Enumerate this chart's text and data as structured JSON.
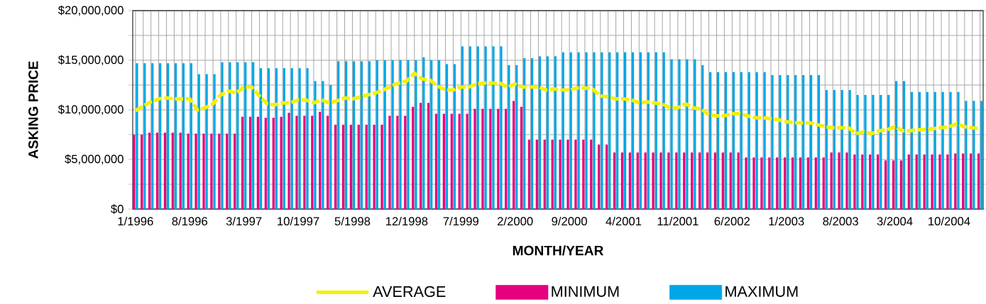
{
  "chart_data": {
    "type": "bar",
    "xlabel": "MONTH/YEAR",
    "ylabel": "ASKING PRICE",
    "categories": [
      "1/1996",
      null,
      null,
      null,
      null,
      null,
      null,
      "8/1996",
      null,
      null,
      null,
      null,
      null,
      null,
      "3/1997",
      null,
      null,
      null,
      null,
      null,
      null,
      "10/1997",
      null,
      null,
      null,
      null,
      null,
      null,
      "5/1998",
      null,
      null,
      null,
      null,
      null,
      null,
      "12/1998",
      null,
      null,
      null,
      null,
      null,
      null,
      "7/1999",
      null,
      null,
      null,
      null,
      null,
      null,
      "2/2000",
      null,
      null,
      null,
      null,
      null,
      null,
      "9/2000",
      null,
      null,
      null,
      null,
      null,
      null,
      "4/2001",
      null,
      null,
      null,
      null,
      null,
      null,
      "11/2001",
      null,
      null,
      null,
      null,
      null,
      null,
      "6/2002",
      null,
      null,
      null,
      null,
      null,
      null,
      "1/2003",
      null,
      null,
      null,
      null,
      null,
      null,
      "8/2003",
      null,
      null,
      null,
      null,
      null,
      null,
      "3/2004",
      null,
      null,
      null,
      null,
      null,
      null,
      "10/2004",
      null,
      null,
      null,
      null
    ],
    "series": [
      {
        "name": "AVERAGE",
        "type": "line",
        "line_style": "dashed",
        "color": "#f5f000",
        "values": [
          9900000.0,
          10400000.0,
          10800000.0,
          11100000.0,
          11200000.0,
          11100000.0,
          11100000.0,
          11100000.0,
          10000000.0,
          10200000.0,
          10600000.0,
          11500000.0,
          11900000.0,
          11700000.0,
          12300000.0,
          12300000.0,
          11400000.0,
          10600000.0,
          10500000.0,
          10700000.0,
          10700000.0,
          11000000.0,
          11000000.0,
          10700000.0,
          11000000.0,
          10700000.0,
          10900000.0,
          11200000.0,
          11100000.0,
          11300000.0,
          11500000.0,
          11700000.0,
          12000000.0,
          12400000.0,
          12700000.0,
          12900000.0,
          13700000.0,
          13100000.0,
          13000000.0,
          12400000.0,
          12000000.0,
          12000000.0,
          12300000.0,
          12300000.0,
          12600000.0,
          12700000.0,
          12700000.0,
          12700000.0,
          12300000.0,
          12600000.0,
          12300000.0,
          12300000.0,
          12300000.0,
          12000000.0,
          12100000.0,
          12000000.0,
          12000000.0,
          12200000.0,
          12200000.0,
          12100000.0,
          11400000.0,
          11300000.0,
          11100000.0,
          11100000.0,
          11000000.0,
          10700000.0,
          10800000.0,
          10700000.0,
          10600000.0,
          10200000.0,
          10200000.0,
          10600000.0,
          10200000.0,
          10100000.0,
          9500000.0,
          9400000.0,
          9400000.0,
          9600000.0,
          9600000.0,
          9400000.0,
          9200000.0,
          9200000.0,
          9100000.0,
          9000000.0,
          8800000.0,
          8700000.0,
          8700000.0,
          8700000.0,
          8500000.0,
          8300000.0,
          8200000.0,
          8200000.0,
          8200000.0,
          7600000.0,
          7800000.0,
          7600000.0,
          7900000.0,
          8000000.0,
          8300000.0,
          7900000.0,
          7900000.0,
          8000000.0,
          8000000.0,
          8100000.0,
          8200000.0,
          8300000.0,
          8600000.0,
          8300000.0,
          8200000.0,
          8100000.0
        ]
      },
      {
        "name": "MINIMUM",
        "color": "#e6007e",
        "values": [
          7500000.0,
          7500000.0,
          7700000.0,
          7700000.0,
          7700000.0,
          7700000.0,
          7700000.0,
          7600000.0,
          7600000.0,
          7600000.0,
          7600000.0,
          7600000.0,
          7600000.0,
          7600000.0,
          9300000.0,
          9300000.0,
          9300000.0,
          9200000.0,
          9200000.0,
          9300000.0,
          9700000.0,
          9400000.0,
          9400000.0,
          9400000.0,
          9800000.0,
          9400000.0,
          8500000.0,
          8500000.0,
          8500000.0,
          8500000.0,
          8500000.0,
          8500000.0,
          8500000.0,
          9400000.0,
          9400000.0,
          9400000.0,
          10300000.0,
          10700000.0,
          10700000.0,
          9600000.0,
          9600000.0,
          9600000.0,
          9600000.0,
          9600000.0,
          10100000.0,
          10100000.0,
          10100000.0,
          10100000.0,
          10100000.0,
          10900000.0,
          10300000.0,
          7000000.0,
          7000000.0,
          7000000.0,
          7000000.0,
          7000000.0,
          7000000.0,
          7000000.0,
          7000000.0,
          7000000.0,
          6500000.0,
          6500000.0,
          5700000.0,
          5700000.0,
          5700000.0,
          5700000.0,
          5700000.0,
          5700000.0,
          5700000.0,
          5700000.0,
          5700000.0,
          5700000.0,
          5700000.0,
          5700000.0,
          5700000.0,
          5700000.0,
          5700000.0,
          5700000.0,
          5700000.0,
          5200000.0,
          5200000.0,
          5200000.0,
          5200000.0,
          5200000.0,
          5200000.0,
          5200000.0,
          5200000.0,
          5200000.0,
          5200000.0,
          5200000.0,
          5700000.0,
          5700000.0,
          5700000.0,
          5500000.0,
          5500000.0,
          5500000.0,
          5500000.0,
          4900000.0,
          4900000.0,
          4900000.0,
          5500000.0,
          5500000.0,
          5500000.0,
          5500000.0,
          5500000.0,
          5500000.0,
          5600000.0,
          5600000.0,
          5600000.0,
          5600000.0
        ]
      },
      {
        "name": "MAXIMUM",
        "color": "#00a6e6",
        "values": [
          14700000.0,
          14700000.0,
          14700000.0,
          14700000.0,
          14700000.0,
          14700000.0,
          14700000.0,
          14700000.0,
          13600000.0,
          13600000.0,
          13600000.0,
          14800000.0,
          14800000.0,
          14800000.0,
          14800000.0,
          14800000.0,
          14200000.0,
          14200000.0,
          14200000.0,
          14200000.0,
          14200000.0,
          14200000.0,
          14200000.0,
          12900000.0,
          12900000.0,
          12500000.0,
          14900000.0,
          14900000.0,
          14900000.0,
          14900000.0,
          14900000.0,
          15000000.0,
          15000000.0,
          15000000.0,
          15000000.0,
          15000000.0,
          15000000.0,
          15300000.0,
          15000000.0,
          15000000.0,
          14600000.0,
          14600000.0,
          16400000.0,
          16400000.0,
          16400000.0,
          16400000.0,
          16400000.0,
          16400000.0,
          14500000.0,
          14500000.0,
          15200000.0,
          15200000.0,
          15400000.0,
          15400000.0,
          15400000.0,
          15800000.0,
          15800000.0,
          15800000.0,
          15800000.0,
          15800000.0,
          15800000.0,
          15800000.0,
          15800000.0,
          15800000.0,
          15800000.0,
          15800000.0,
          15800000.0,
          15800000.0,
          15800000.0,
          15100000.0,
          15100000.0,
          15100000.0,
          15100000.0,
          14500000.0,
          13800000.0,
          13800000.0,
          13800000.0,
          13800000.0,
          13800000.0,
          13800000.0,
          13800000.0,
          13800000.0,
          13500000.0,
          13500000.0,
          13500000.0,
          13500000.0,
          13500000.0,
          13500000.0,
          13500000.0,
          12000000.0,
          12000000.0,
          12000000.0,
          12000000.0,
          11500000.0,
          11500000.0,
          11500000.0,
          11500000.0,
          11500000.0,
          12900000.0,
          12900000.0,
          11800000.0,
          11800000.0,
          11800000.0,
          11800000.0,
          11800000.0,
          11800000.0,
          11800000.0,
          10900000.0,
          10900000.0,
          10900000.0
        ]
      }
    ],
    "ylim": [
      0,
      20000000
    ],
    "yticks": [
      {
        "value": 0,
        "label": "$0"
      },
      {
        "value": 2500000,
        "label": null
      },
      {
        "value": 5000000,
        "label": "$5,000,000"
      },
      {
        "value": 7500000,
        "label": null
      },
      {
        "value": 10000000,
        "label": "$10,000,000"
      },
      {
        "value": 12500000,
        "label": null
      },
      {
        "value": 15000000,
        "label": "$15,000,000"
      },
      {
        "value": 17500000,
        "label": null
      },
      {
        "value": 20000000,
        "label": "$20,000,000"
      }
    ],
    "grid": true,
    "legend": "bottom"
  }
}
